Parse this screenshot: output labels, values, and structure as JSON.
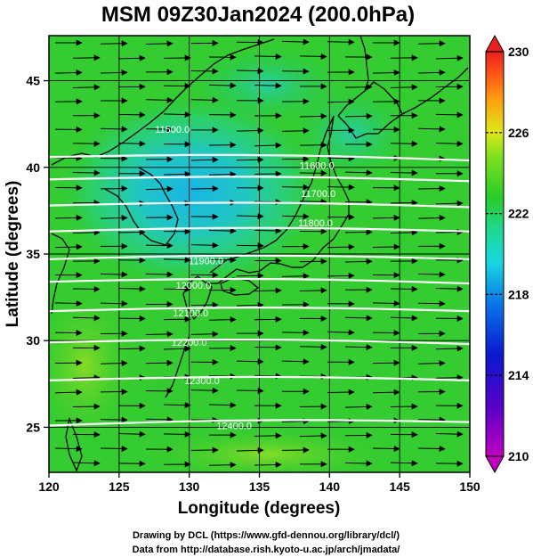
{
  "chart_data": {
    "type": "heatmap",
    "title": "MSM 09Z30Jan2024 (200.0hPa)",
    "xlabel": "Longitude (degrees)",
    "ylabel": "Latitude  (degrees)",
    "xlim": [
      120,
      150
    ],
    "ylim": [
      22.4,
      47.6
    ],
    "x_ticks": [
      120,
      125,
      130,
      135,
      140,
      145,
      150
    ],
    "y_ticks": [
      25,
      30,
      35,
      40,
      45
    ],
    "grid": true,
    "colorbar": {
      "min": 210,
      "max": 230,
      "ticks": [
        210,
        214,
        218,
        222,
        226,
        230
      ],
      "extend": "both"
    },
    "contour_lines": [
      {
        "label": "11500.0",
        "lat_at_120": 40.6,
        "lat_at_150": 40.4
      },
      {
        "label": "11600.0",
        "lat_at_120": 39.3,
        "lat_at_150": 39.2
      },
      {
        "label": "11700.0",
        "lat_at_120": 37.8,
        "lat_at_150": 37.7
      },
      {
        "label": "11800.0",
        "lat_at_120": 36.3,
        "lat_at_150": 36.3
      },
      {
        "label": "11900.0",
        "lat_at_120": 34.7,
        "lat_at_150": 34.7
      },
      {
        "label": "12000.0",
        "lat_at_120": 33.4,
        "lat_at_150": 33.3
      },
      {
        "label": "12100.0",
        "lat_at_120": 31.7,
        "lat_at_150": 31.7
      },
      {
        "label": "12200.0",
        "lat_at_120": 29.9,
        "lat_at_150": 29.8
      },
      {
        "label": "12300.0",
        "lat_at_120": 27.7,
        "lat_at_150": 27.7
      },
      {
        "label": "12400.0",
        "lat_at_120": 25.1,
        "lat_at_150": 25.3
      }
    ],
    "label_positions": [
      {
        "label": "11500.0",
        "lon": 128.8,
        "lat": 42.0
      },
      {
        "label": "11600.0",
        "lon": 139.1,
        "lat": 39.9
      },
      {
        "label": "11700.0",
        "lon": 139.2,
        "lat": 38.3
      },
      {
        "label": "11800.0",
        "lon": 139.0,
        "lat": 36.6
      },
      {
        "label": "11900.0",
        "lon": 131.2,
        "lat": 34.4
      },
      {
        "label": "12000.0",
        "lon": 130.3,
        "lat": 33.0
      },
      {
        "label": "12100.0",
        "lon": 130.1,
        "lat": 31.4
      },
      {
        "label": "12200.0",
        "lon": 130.0,
        "lat": 29.7
      },
      {
        "label": "12300.0",
        "lon": 130.9,
        "lat": 27.5
      },
      {
        "label": "12400.0",
        "lon": 133.2,
        "lat": 24.9
      }
    ]
  },
  "footer": {
    "line1": "Drawing by DCL (https://www.gfd-dennou.org/library/dcl/)",
    "line2": "Data from http://database.rish.kyoto-u.ac.jp/arch/jmadata/"
  }
}
